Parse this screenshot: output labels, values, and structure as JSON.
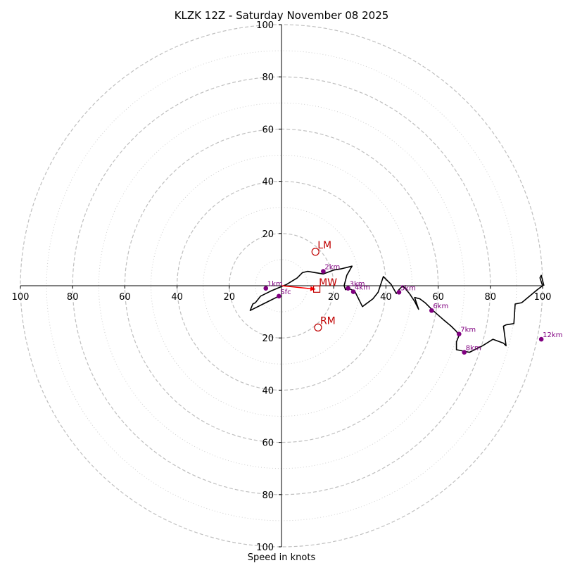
{
  "chart_data": {
    "type": "hodograph",
    "title": "KLZK 12Z - Saturday November 08 2025",
    "xlabel": "Speed in knots",
    "range": [
      -100,
      100
    ],
    "major_rings": [
      20,
      40,
      60,
      80,
      100
    ],
    "minor_rings": [
      10,
      30,
      50,
      70,
      90
    ],
    "x_ticks": [
      {
        "v": -100,
        "label": "100"
      },
      {
        "v": -80,
        "label": "80"
      },
      {
        "v": -60,
        "label": "60"
      },
      {
        "v": -40,
        "label": "40"
      },
      {
        "v": -20,
        "label": "20"
      },
      {
        "v": 20,
        "label": "20"
      },
      {
        "v": 40,
        "label": "40"
      },
      {
        "v": 60,
        "label": "60"
      },
      {
        "v": 80,
        "label": "80"
      },
      {
        "v": 100,
        "label": "100"
      }
    ],
    "y_ticks": [
      {
        "v": 100,
        "label": "100"
      },
      {
        "v": 80,
        "label": "80"
      },
      {
        "v": 60,
        "label": "60"
      },
      {
        "v": 40,
        "label": "40"
      },
      {
        "v": 20,
        "label": "20"
      },
      {
        "v": -20,
        "label": "20"
      },
      {
        "v": -40,
        "label": "40"
      },
      {
        "v": -60,
        "label": "60"
      },
      {
        "v": -80,
        "label": "80"
      },
      {
        "v": -100,
        "label": "100"
      }
    ],
    "hodograph_trace": {
      "u": [
        -1,
        -12,
        -11,
        -10,
        -8,
        -4,
        2,
        6,
        8,
        10,
        13,
        16,
        20,
        23,
        27,
        25,
        24,
        24.5,
        26,
        28,
        31,
        35,
        37,
        39,
        42,
        44,
        45,
        46.5,
        49,
        51,
        52.5,
        51,
        53,
        55,
        58,
        62,
        65,
        67,
        68,
        67,
        67,
        72,
        77,
        81,
        85,
        86,
        85,
        86,
        89,
        89.5,
        92,
        98,
        100,
        99,
        99.5,
        100.5
      ],
      "v": [
        -4,
        -9.5,
        -7,
        -6.5,
        -4,
        -2,
        0.5,
        3,
        5,
        5.5,
        5,
        4.5,
        6,
        6.5,
        7.5,
        4,
        0,
        -1.5,
        -1.2,
        -2,
        -8,
        -5,
        -2.5,
        3.5,
        0.5,
        -3,
        -1.5,
        0,
        -3,
        -6,
        -9,
        -4.5,
        -5,
        -6.5,
        -9.5,
        -13,
        -15.5,
        -17.5,
        -19,
        -21.5,
        -24.5,
        -25.5,
        -23,
        -20.5,
        -22,
        -23,
        -15.5,
        -15,
        -14.5,
        -7,
        -6.5,
        -1.5,
        0,
        3,
        4,
        0
      ]
    },
    "height_markers": [
      {
        "label": "Sfc",
        "u": -1,
        "v": -4
      },
      {
        "label": "1km",
        "u": -6,
        "v": -1
      },
      {
        "label": "2km",
        "u": 16,
        "v": 5.5
      },
      {
        "label": "3km",
        "u": 25.5,
        "v": -1
      },
      {
        "label": "4km",
        "u": 27.5,
        "v": -2.3
      },
      {
        "label": "5km",
        "u": 45,
        "v": -2.5
      },
      {
        "label": "6km",
        "u": 57.5,
        "v": -9.5
      },
      {
        "label": "7km",
        "u": 68,
        "v": -18.5
      },
      {
        "label": "8km",
        "u": 70,
        "v": -25.5
      },
      {
        "label": "12km",
        "u": 99.5,
        "v": -20.5
      }
    ],
    "motion_markers": [
      {
        "label": "LM",
        "u": 13,
        "v": 13,
        "shape": "circle"
      },
      {
        "label": "MW",
        "u": 13.5,
        "v": -1.3,
        "shape": "square"
      },
      {
        "label": "RM",
        "u": 14,
        "v": -16,
        "shape": "circle"
      }
    ],
    "colors": {
      "trace": "#000000",
      "height": "#800080",
      "motion": "#c00000",
      "arrow": "#ff0000",
      "rings": "#bfbfbf"
    }
  }
}
